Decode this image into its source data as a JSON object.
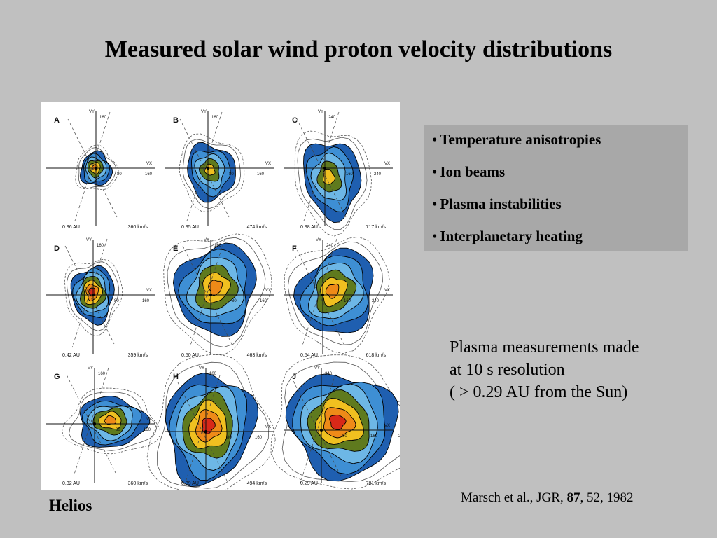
{
  "title": "Measured solar wind proton velocity distributions",
  "bullets": [
    "Temperature anisotropies",
    "Ion beams",
    "Plasma instabilities",
    "Interplanetary heating"
  ],
  "notes": [
    "Plasma measurements made",
    "at 10 s resolution",
    "( > 0.29 AU from the Sun)"
  ],
  "citation": {
    "prefix": "Marsch et al., JGR, ",
    "volume": "87",
    "suffix": ", 52, 1982"
  },
  "figure_label": "Helios",
  "figure": {
    "axis_x": "VX",
    "axis_y": "VY",
    "panels": [
      {
        "id": "A",
        "distance": "0.96 AU",
        "speed": "360 km/s",
        "ytick": "160",
        "xticks": [
          "80",
          "160"
        ]
      },
      {
        "id": "B",
        "distance": "0.95 AU",
        "speed": "474 km/s",
        "ytick": "160",
        "xticks": [
          "80",
          "160"
        ]
      },
      {
        "id": "C",
        "distance": "0.98 AU",
        "speed": "717 km/s",
        "ytick": "240",
        "xticks": [
          "160",
          "240"
        ]
      },
      {
        "id": "D",
        "distance": "0.42 AU",
        "speed": "359 km/s",
        "ytick": "160",
        "xticks": [
          "80",
          "160"
        ]
      },
      {
        "id": "E",
        "distance": "0.50 AU",
        "speed": "463 km/s",
        "ytick": "160",
        "xticks": [
          "80",
          "160"
        ]
      },
      {
        "id": "F",
        "distance": "0.54 AU",
        "speed": "618 km/s",
        "ytick": "240",
        "xticks": [
          "160",
          "240"
        ]
      },
      {
        "id": "G",
        "distance": "0.32 AU",
        "speed": "360 km/s",
        "ytick": "160",
        "xticks": [
          "80",
          "160"
        ]
      },
      {
        "id": "H",
        "distance": "0.39 AU",
        "speed": "494 km/s",
        "ytick": "160",
        "xticks": [
          "80",
          "160"
        ]
      },
      {
        "id": "J",
        "distance": "0.29 AU",
        "speed": "781 km/s",
        "ytick": "240",
        "xticks": [
          "80",
          "160",
          "240"
        ]
      }
    ],
    "contour_colors": [
      "#1f5fb0",
      "#3e8fd4",
      "#6db7e6",
      "#5f7a1e",
      "#f0c020",
      "#ee8a18",
      "#d82818"
    ]
  }
}
